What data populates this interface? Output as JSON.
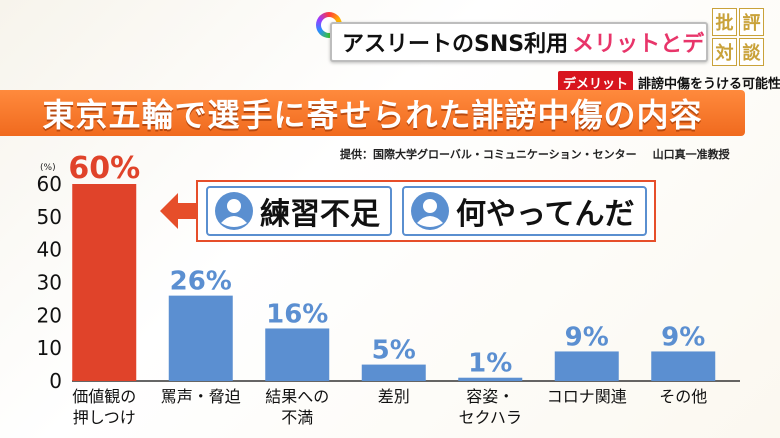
{
  "banner": {
    "title_black": "アスリートのSNS利用",
    "title_pink": "メリットとデメリット",
    "logo_chars": [
      "批",
      "評",
      "対",
      "談"
    ]
  },
  "demerit": {
    "badge": "デメリット",
    "text": "誹謗中傷をうける可能性"
  },
  "headline": "東京五輪で選手に寄せられた誹謗中傷の内容",
  "source": {
    "text": "提供：国際大学グローバル・コミュニケーション・センター",
    "professor": "山口真一准教授"
  },
  "quotes": [
    "練習不足",
    "何やってんだ"
  ],
  "colors": {
    "highlight_bar": "#e0432a",
    "bar": "#5b8fd1",
    "highlight_label": "#e0432a",
    "label": "#5b8fd1",
    "title_bg": "#f06a1e"
  },
  "chart_data": {
    "type": "bar",
    "categories": [
      [
        "価値観の",
        "押しつけ"
      ],
      [
        "罵声・脅迫"
      ],
      [
        "結果への",
        "不満"
      ],
      [
        "差別"
      ],
      [
        "容姿・",
        "セクハラ"
      ],
      [
        "コロナ関連"
      ],
      [
        "その他"
      ]
    ],
    "values": [
      60,
      26,
      16,
      5,
      1,
      9,
      9
    ],
    "data_labels": [
      "60%",
      "26%",
      "16%",
      "5%",
      "1%",
      "9%",
      "9%"
    ],
    "highlight_index": 0,
    "yunit": "(%)",
    "ylim": [
      0,
      60
    ],
    "yticks": [
      0,
      10,
      20,
      30,
      40,
      50,
      60
    ],
    "grid": false,
    "title": "東京五輪で選手に寄せられた誹謗中傷の内容"
  }
}
